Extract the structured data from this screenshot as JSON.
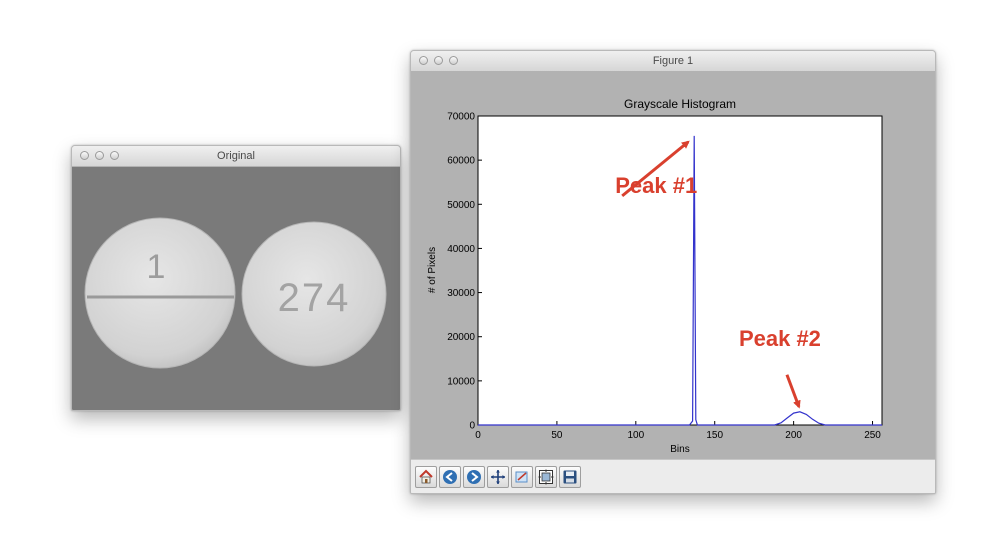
{
  "windows": {
    "original": {
      "title": "Original"
    },
    "figure": {
      "title": "Figure 1"
    }
  },
  "pills": {
    "left_label": "1",
    "right_label": "274"
  },
  "chart_data": {
    "type": "line",
    "title": "Grayscale Histogram",
    "xlabel": "Bins",
    "ylabel": "# of Pixels",
    "xlim": [
      0,
      256
    ],
    "ylim": [
      0,
      70000
    ],
    "xticks": [
      "0",
      "50",
      "100",
      "150",
      "200",
      "250"
    ],
    "yticks": [
      "0",
      "10000",
      "20000",
      "30000",
      "40000",
      "50000",
      "60000",
      "70000"
    ],
    "series": [
      {
        "color": "#3333cc",
        "points": [
          [
            0,
            0
          ],
          [
            134,
            0
          ],
          [
            136,
            900
          ],
          [
            137,
            65500
          ],
          [
            138,
            1200
          ],
          [
            139,
            0
          ],
          [
            188,
            0
          ],
          [
            192,
            500
          ],
          [
            196,
            1600
          ],
          [
            200,
            2700
          ],
          [
            204,
            3000
          ],
          [
            208,
            2400
          ],
          [
            212,
            1300
          ],
          [
            216,
            400
          ],
          [
            220,
            0
          ],
          [
            256,
            0
          ]
        ]
      }
    ],
    "annotations": [
      {
        "text": "Peak #1",
        "color": "#d9402e",
        "target_x": 137,
        "target_y": 65500
      },
      {
        "text": "Peak #2",
        "color": "#d9402e",
        "target_x": 204,
        "target_y": 3000
      }
    ]
  },
  "toolbar": {
    "buttons": [
      "home-icon",
      "back-icon",
      "forward-icon",
      "pan-icon",
      "zoom-icon",
      "subplots-icon",
      "save-icon"
    ]
  }
}
